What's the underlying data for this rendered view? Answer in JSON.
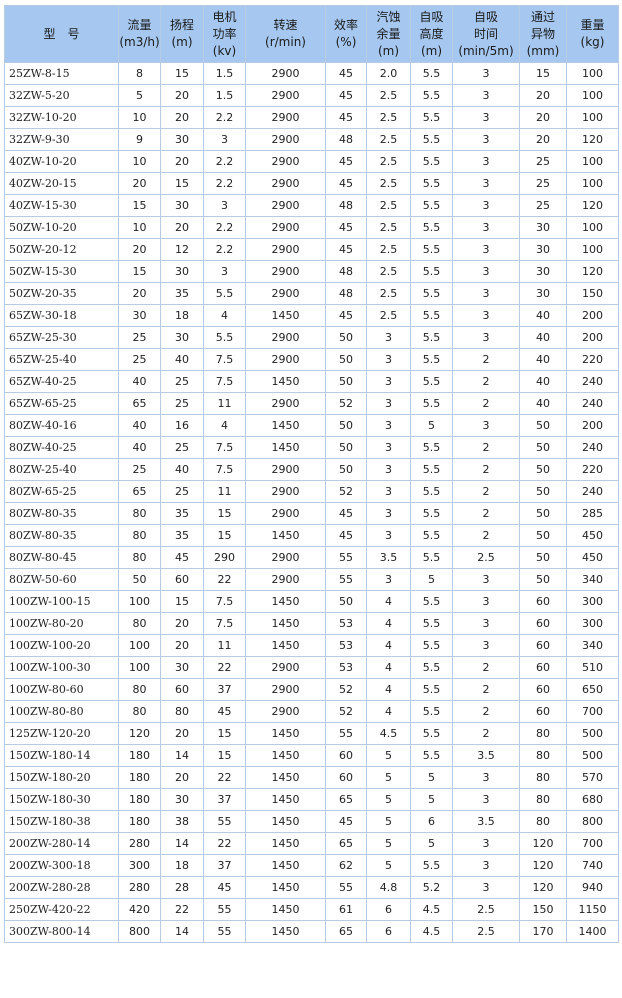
{
  "table": {
    "header": [
      [
        "型　号"
      ],
      [
        "流量",
        "(m3/h)"
      ],
      [
        "扬程",
        "(m)"
      ],
      [
        "电机",
        "功率",
        "(kv)"
      ],
      [
        "转速",
        "(r/min)"
      ],
      [
        "效率",
        "(%)"
      ],
      [
        "汽蚀",
        "余量",
        "(m)"
      ],
      [
        "自吸",
        "高度",
        "(m)"
      ],
      [
        "自吸",
        "时间",
        "(min/5m)"
      ],
      [
        "通过",
        "异物",
        "(mm)"
      ],
      [
        "重量",
        "(kg)"
      ]
    ],
    "rows": [
      [
        "25ZW-8-15",
        "8",
        "15",
        "1.5",
        "2900",
        "45",
        "2.0",
        "5.5",
        "3",
        "15",
        "100"
      ],
      [
        "32ZW-5-20",
        "5",
        "20",
        "1.5",
        "2900",
        "45",
        "2.5",
        "5.5",
        "3",
        "20",
        "100"
      ],
      [
        "32ZW-10-20",
        "10",
        "20",
        "2.2",
        "2900",
        "45",
        "2.5",
        "5.5",
        "3",
        "20",
        "100"
      ],
      [
        "32ZW-9-30",
        "9",
        "30",
        "3",
        "2900",
        "48",
        "2.5",
        "5.5",
        "3",
        "20",
        "120"
      ],
      [
        "40ZW-10-20",
        "10",
        "20",
        "2.2",
        "2900",
        "45",
        "2.5",
        "5.5",
        "3",
        "25",
        "100"
      ],
      [
        "40ZW-20-15",
        "20",
        "15",
        "2.2",
        "2900",
        "45",
        "2.5",
        "5.5",
        "3",
        "25",
        "100"
      ],
      [
        "40ZW-15-30",
        "15",
        "30",
        "3",
        "2900",
        "48",
        "2.5",
        "5.5",
        "3",
        "25",
        "120"
      ],
      [
        "50ZW-10-20",
        "10",
        "20",
        "2.2",
        "2900",
        "45",
        "2.5",
        "5.5",
        "3",
        "30",
        "100"
      ],
      [
        "50ZW-20-12",
        "20",
        "12",
        "2.2",
        "2900",
        "45",
        "2.5",
        "5.5",
        "3",
        "30",
        "100"
      ],
      [
        "50ZW-15-30",
        "15",
        "30",
        "3",
        "2900",
        "48",
        "2.5",
        "5.5",
        "3",
        "30",
        "120"
      ],
      [
        "50ZW-20-35",
        "20",
        "35",
        "5.5",
        "2900",
        "48",
        "2.5",
        "5.5",
        "3",
        "30",
        "150"
      ],
      [
        "65ZW-30-18",
        "30",
        "18",
        "4",
        "1450",
        "45",
        "2.5",
        "5.5",
        "3",
        "40",
        "200"
      ],
      [
        "65ZW-25-30",
        "25",
        "30",
        "5.5",
        "2900",
        "50",
        "3",
        "5.5",
        "3",
        "40",
        "200"
      ],
      [
        "65ZW-25-40",
        "25",
        "40",
        "7.5",
        "2900",
        "50",
        "3",
        "5.5",
        "2",
        "40",
        "220"
      ],
      [
        "65ZW-40-25",
        "40",
        "25",
        "7.5",
        "1450",
        "50",
        "3",
        "5.5",
        "2",
        "40",
        "240"
      ],
      [
        "65ZW-65-25",
        "65",
        "25",
        "11",
        "2900",
        "52",
        "3",
        "5.5",
        "2",
        "40",
        "240"
      ],
      [
        "80ZW-40-16",
        "40",
        "16",
        "4",
        "1450",
        "50",
        "3",
        "5",
        "3",
        "50",
        "200"
      ],
      [
        "80ZW-40-25",
        "40",
        "25",
        "7.5",
        "1450",
        "50",
        "3",
        "5.5",
        "2",
        "50",
        "240"
      ],
      [
        "80ZW-25-40",
        "25",
        "40",
        "7.5",
        "2900",
        "50",
        "3",
        "5.5",
        "2",
        "50",
        "220"
      ],
      [
        "80ZW-65-25",
        "65",
        "25",
        "11",
        "2900",
        "52",
        "3",
        "5.5",
        "2",
        "50",
        "240"
      ],
      [
        "80ZW-80-35",
        "80",
        "35",
        "15",
        "2900",
        "45",
        "3",
        "5.5",
        "2",
        "50",
        "285"
      ],
      [
        "80ZW-80-35",
        "80",
        "35",
        "15",
        "1450",
        "45",
        "3",
        "5.5",
        "2",
        "50",
        "450"
      ],
      [
        "80ZW-80-45",
        "80",
        "45",
        "290",
        "2900",
        "55",
        "3.5",
        "5.5",
        "2.5",
        "50",
        "450"
      ],
      [
        "80ZW-50-60",
        "50",
        "60",
        "22",
        "2900",
        "55",
        "3",
        "5",
        "3",
        "50",
        "340"
      ],
      [
        "100ZW-100-15",
        "100",
        "15",
        "7.5",
        "1450",
        "50",
        "4",
        "5.5",
        "3",
        "60",
        "300"
      ],
      [
        "100ZW-80-20",
        "80",
        "20",
        "7.5",
        "1450",
        "53",
        "4",
        "5.5",
        "3",
        "60",
        "300"
      ],
      [
        "100ZW-100-20",
        "100",
        "20",
        "11",
        "1450",
        "53",
        "4",
        "5.5",
        "3",
        "60",
        "340"
      ],
      [
        "100ZW-100-30",
        "100",
        "30",
        "22",
        "2900",
        "53",
        "4",
        "5.5",
        "2",
        "60",
        "510"
      ],
      [
        "100ZW-80-60",
        "80",
        "60",
        "37",
        "2900",
        "52",
        "4",
        "5.5",
        "2",
        "60",
        "650"
      ],
      [
        "100ZW-80-80",
        "80",
        "80",
        "45",
        "2900",
        "52",
        "4",
        "5.5",
        "2",
        "60",
        "700"
      ],
      [
        "125ZW-120-20",
        "120",
        "20",
        "15",
        "1450",
        "55",
        "4.5",
        "5.5",
        "2",
        "80",
        "500"
      ],
      [
        "150ZW-180-14",
        "180",
        "14",
        "15",
        "1450",
        "60",
        "5",
        "5.5",
        "3.5",
        "80",
        "500"
      ],
      [
        "150ZW-180-20",
        "180",
        "20",
        "22",
        "1450",
        "60",
        "5",
        "5",
        "3",
        "80",
        "570"
      ],
      [
        "150ZW-180-30",
        "180",
        "30",
        "37",
        "1450",
        "65",
        "5",
        "5",
        "3",
        "80",
        "680"
      ],
      [
        "150ZW-180-38",
        "180",
        "38",
        "55",
        "1450",
        "45",
        "5",
        "6",
        "3.5",
        "80",
        "800"
      ],
      [
        "200ZW-280-14",
        "280",
        "14",
        "22",
        "1450",
        "65",
        "5",
        "5",
        "3",
        "120",
        "700"
      ],
      [
        "200ZW-300-18",
        "300",
        "18",
        "37",
        "1450",
        "62",
        "5",
        "5.5",
        "3",
        "120",
        "740"
      ],
      [
        "200ZW-280-28",
        "280",
        "28",
        "45",
        "1450",
        "55",
        "4.8",
        "5.2",
        "3",
        "120",
        "940"
      ],
      [
        "250ZW-420-22",
        "420",
        "22",
        "55",
        "1450",
        "61",
        "6",
        "4.5",
        "2.5",
        "150",
        "1150"
      ],
      [
        "300ZW-800-14",
        "800",
        "14",
        "55",
        "1450",
        "65",
        "6",
        "4.5",
        "2.5",
        "170",
        "1400"
      ]
    ]
  }
}
